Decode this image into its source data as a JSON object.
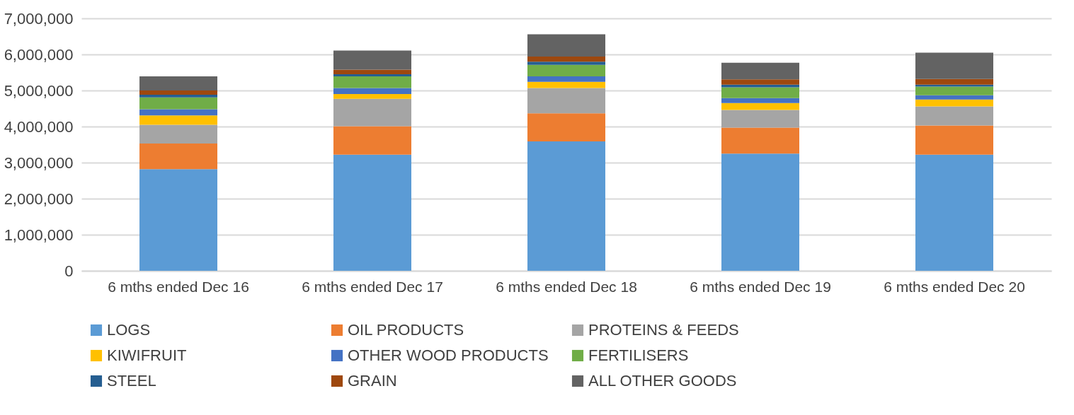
{
  "chart_data": {
    "type": "bar",
    "stacked": true,
    "categories": [
      "6 mths ended Dec 16",
      "6 mths ended Dec 17",
      "6 mths ended Dec 18",
      "6 mths ended Dec 19",
      "6 mths ended Dec 20"
    ],
    "series": [
      {
        "name": "LOGS",
        "color": "#5b9bd5",
        "values": [
          2820000,
          3220000,
          3590000,
          3250000,
          3220000
        ]
      },
      {
        "name": "OIL PRODUCTS",
        "color": "#ed7d31",
        "values": [
          710000,
          790000,
          780000,
          720000,
          810000
        ]
      },
      {
        "name": "PROTEINS & FEEDS",
        "color": "#a5a5a5",
        "values": [
          520000,
          760000,
          700000,
          490000,
          530000
        ]
      },
      {
        "name": "KIWIFRUIT",
        "color": "#ffc000",
        "values": [
          260000,
          130000,
          170000,
          190000,
          190000
        ]
      },
      {
        "name": "OTHER WOOD PRODUCTS",
        "color": "#4472c4",
        "values": [
          170000,
          170000,
          150000,
          140000,
          120000
        ]
      },
      {
        "name": "FERTILISERS",
        "color": "#70ad47",
        "values": [
          330000,
          320000,
          320000,
          300000,
          240000
        ]
      },
      {
        "name": "STEEL",
        "color": "#255e91",
        "values": [
          70000,
          60000,
          90000,
          70000,
          50000
        ]
      },
      {
        "name": "GRAIN",
        "color": "#9e480e",
        "values": [
          120000,
          130000,
          140000,
          150000,
          160000
        ]
      },
      {
        "name": "ALL OTHER GOODS",
        "color": "#636363",
        "values": [
          390000,
          530000,
          620000,
          460000,
          730000
        ]
      }
    ],
    "ylim": [
      0,
      7000000
    ],
    "yticks": [
      0,
      {
        "value": 1000000,
        "label": "1,000,000"
      },
      {
        "value": 2000000,
        "label": "2,000,000"
      },
      {
        "value": 3000000,
        "label": "3,000,000"
      },
      {
        "value": 4000000,
        "label": "4,000,000"
      },
      {
        "value": 5000000,
        "label": "5,000,000"
      },
      {
        "value": 6000000,
        "label": "6,000,000"
      },
      {
        "value": 7000000,
        "label": "7,000,000"
      }
    ],
    "grid": "y",
    "legend": "bottom"
  }
}
